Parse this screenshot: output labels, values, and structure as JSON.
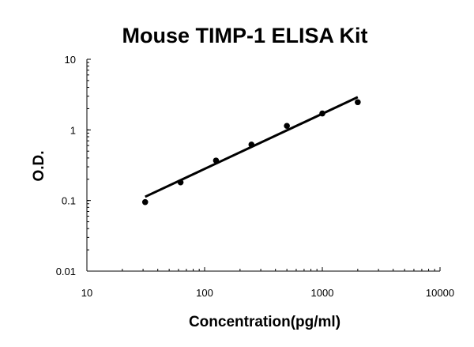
{
  "chart_data": {
    "type": "scatter",
    "title": "Mouse TIMP-1 ELISA Kit",
    "xlabel": "Concentration(pg/ml)",
    "ylabel": "O.D.",
    "x_scale": "log",
    "y_scale": "log",
    "xlim": [
      10,
      10000
    ],
    "ylim": [
      0.01,
      10
    ],
    "x_ticks": [
      "10",
      "100",
      "1000",
      "10000"
    ],
    "y_ticks": [
      "0.01",
      "0.1",
      "1",
      "10"
    ],
    "grid": false,
    "points": {
      "x": [
        31.25,
        62.5,
        125,
        250,
        500,
        1000,
        2000
      ],
      "y": [
        0.095,
        0.181,
        0.368,
        0.62,
        1.14,
        1.71,
        2.47
      ]
    },
    "fit_line": {
      "x": [
        31.25,
        2000
      ],
      "y": [
        0.113,
        2.91
      ]
    },
    "color": "#000000"
  }
}
